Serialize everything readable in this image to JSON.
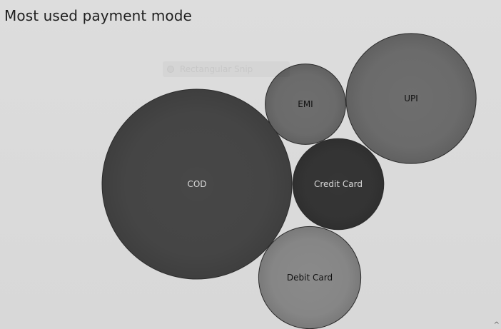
{
  "chart_data": {
    "type": "bubble",
    "title": "Most used payment mode",
    "bubbles": [
      {
        "label": "COD",
        "value": 100,
        "color": "#474747",
        "text_color": "#d9d9d9"
      },
      {
        "label": "UPI",
        "value": 47,
        "color": "#6e6e6e",
        "text_color": "#111111"
      },
      {
        "label": "Debit Card",
        "value": 29,
        "color": "#8a8a8a",
        "text_color": "#111111"
      },
      {
        "label": "Credit Card",
        "value": 23,
        "color": "#353535",
        "text_color": "#d9d9d9"
      },
      {
        "label": "EMI",
        "value": 18,
        "color": "#6e6e6e",
        "text_color": "#111111"
      }
    ]
  },
  "overlay": {
    "snip_label": "Rectangular Snip"
  },
  "corner_caret": "^"
}
